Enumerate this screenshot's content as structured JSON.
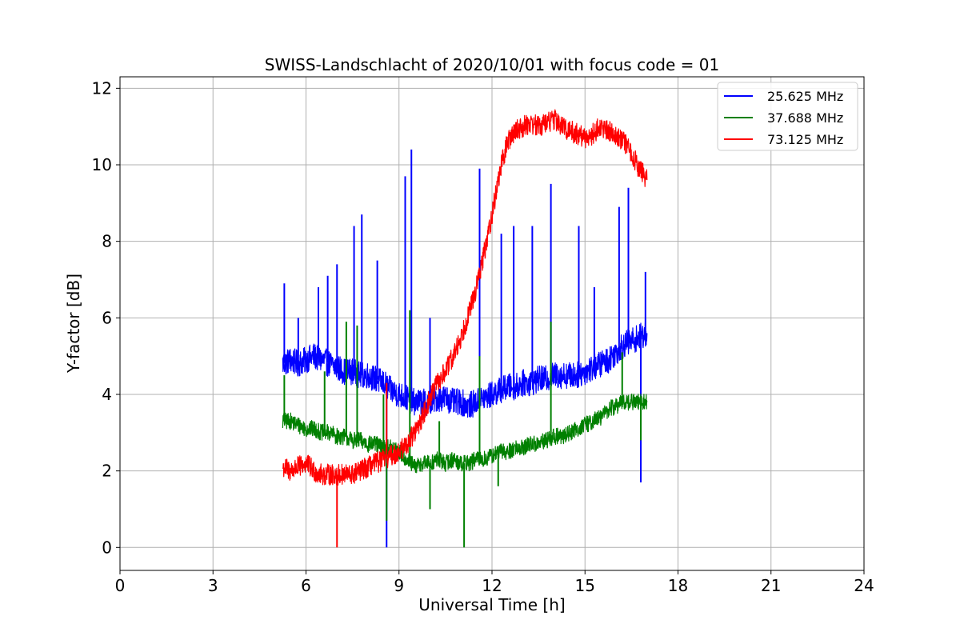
{
  "chart_data": {
    "type": "line",
    "title": "SWISS-Landschlacht of 2020/10/01 with focus code = 01",
    "xlabel": "Universal Time [h]",
    "ylabel": "Y-factor [dB]",
    "xlim": [
      0,
      24
    ],
    "ylim": [
      -0.6,
      12.3
    ],
    "xticks": [
      0,
      3,
      6,
      9,
      12,
      15,
      18,
      21,
      24
    ],
    "yticks": [
      0,
      2,
      4,
      6,
      8,
      10,
      12
    ],
    "grid": true,
    "legend_position": "top-right",
    "series": [
      {
        "name": "25.625 MHz",
        "color": "#0000ff",
        "x": [
          5.25,
          5.5,
          5.75,
          6.0,
          6.25,
          6.5,
          6.75,
          7.0,
          7.25,
          7.5,
          7.75,
          8.0,
          8.25,
          8.5,
          8.75,
          9.0,
          9.25,
          9.5,
          9.75,
          10.0,
          10.25,
          10.5,
          10.75,
          11.0,
          11.25,
          11.5,
          11.75,
          12.0,
          12.25,
          12.5,
          12.75,
          13.0,
          13.25,
          13.5,
          13.75,
          14.0,
          14.25,
          14.5,
          14.75,
          15.0,
          15.25,
          15.5,
          15.75,
          16.0,
          16.25,
          16.5,
          16.75,
          17.0
        ],
        "y": [
          4.8,
          4.9,
          4.8,
          4.9,
          5.0,
          4.9,
          4.8,
          4.7,
          4.6,
          4.6,
          4.5,
          4.5,
          4.4,
          4.3,
          4.1,
          4.0,
          3.9,
          3.8,
          3.8,
          3.8,
          3.9,
          3.9,
          3.8,
          3.8,
          3.7,
          3.8,
          3.9,
          4.0,
          4.1,
          4.2,
          4.2,
          4.3,
          4.3,
          4.4,
          4.4,
          4.5,
          4.5,
          4.5,
          4.5,
          4.6,
          4.7,
          4.8,
          4.9,
          5.1,
          5.3,
          5.4,
          5.5,
          5.6
        ],
        "spikes": [
          [
            5.3,
            6.9
          ],
          [
            5.75,
            6.0
          ],
          [
            6.4,
            6.8
          ],
          [
            6.7,
            7.1
          ],
          [
            7.0,
            7.4
          ],
          [
            7.55,
            8.4
          ],
          [
            7.8,
            8.7
          ],
          [
            8.3,
            7.5
          ],
          [
            9.2,
            9.7
          ],
          [
            9.4,
            10.4
          ],
          [
            10.0,
            6.0
          ],
          [
            11.6,
            9.9
          ],
          [
            12.3,
            8.2
          ],
          [
            12.7,
            8.4
          ],
          [
            13.3,
            8.4
          ],
          [
            13.9,
            9.5
          ],
          [
            14.8,
            8.4
          ],
          [
            15.3,
            6.8
          ],
          [
            16.1,
            8.9
          ],
          [
            16.4,
            9.4
          ],
          [
            16.95,
            7.2
          ],
          [
            8.6,
            0.0
          ],
          [
            16.8,
            1.7
          ]
        ]
      },
      {
        "name": "37.688 MHz",
        "color": "#008000",
        "x": [
          5.25,
          5.5,
          5.75,
          6.0,
          6.25,
          6.5,
          6.75,
          7.0,
          7.25,
          7.5,
          7.75,
          8.0,
          8.25,
          8.5,
          8.75,
          9.0,
          9.25,
          9.5,
          9.75,
          10.0,
          10.25,
          10.5,
          10.75,
          11.0,
          11.25,
          11.5,
          11.75,
          12.0,
          12.25,
          12.5,
          12.75,
          13.0,
          13.25,
          13.5,
          13.75,
          14.0,
          14.25,
          14.5,
          14.75,
          15.0,
          15.25,
          15.5,
          15.75,
          16.0,
          16.25,
          16.5,
          16.75,
          17.0
        ],
        "y": [
          3.3,
          3.3,
          3.2,
          3.1,
          3.1,
          3.0,
          3.0,
          2.9,
          2.9,
          2.8,
          2.8,
          2.7,
          2.7,
          2.6,
          2.6,
          2.5,
          2.3,
          2.1,
          2.2,
          2.2,
          2.3,
          2.2,
          2.3,
          2.2,
          2.2,
          2.3,
          2.3,
          2.4,
          2.5,
          2.5,
          2.6,
          2.6,
          2.7,
          2.7,
          2.8,
          2.9,
          2.9,
          3.0,
          3.1,
          3.2,
          3.3,
          3.4,
          3.6,
          3.7,
          3.8,
          3.8,
          3.8,
          3.8
        ],
        "spikes": [
          [
            5.3,
            4.5
          ],
          [
            6.6,
            4.6
          ],
          [
            7.3,
            5.9
          ],
          [
            7.65,
            5.8
          ],
          [
            8.5,
            4.0
          ],
          [
            9.35,
            6.2
          ],
          [
            10.3,
            3.3
          ],
          [
            11.6,
            5.0
          ],
          [
            13.9,
            5.9
          ],
          [
            16.2,
            5.1
          ],
          [
            8.6,
            0.7
          ],
          [
            10.0,
            1.0
          ],
          [
            11.1,
            0.0
          ],
          [
            12.2,
            1.6
          ],
          [
            16.8,
            2.8
          ]
        ]
      },
      {
        "name": "73.125 MHz",
        "color": "#ff0000",
        "x": [
          5.25,
          5.5,
          5.75,
          6.0,
          6.25,
          6.5,
          6.75,
          7.0,
          7.25,
          7.5,
          7.75,
          8.0,
          8.25,
          8.5,
          8.75,
          9.0,
          9.25,
          9.5,
          9.75,
          10.0,
          10.25,
          10.5,
          10.75,
          11.0,
          11.25,
          11.5,
          11.75,
          12.0,
          12.25,
          12.5,
          12.75,
          13.0,
          13.25,
          13.5,
          13.75,
          14.0,
          14.25,
          14.5,
          14.75,
          15.0,
          15.25,
          15.5,
          15.75,
          16.0,
          16.25,
          16.5,
          16.75,
          17.0
        ],
        "y": [
          2.1,
          2.0,
          2.1,
          2.2,
          2.0,
          1.9,
          1.9,
          1.9,
          1.9,
          1.9,
          2.0,
          2.1,
          2.2,
          2.3,
          2.4,
          2.5,
          2.7,
          3.0,
          3.4,
          3.9,
          4.3,
          4.6,
          5.0,
          5.5,
          6.1,
          6.8,
          7.7,
          8.7,
          9.8,
          10.6,
          10.9,
          11.0,
          11.1,
          11.0,
          11.1,
          11.2,
          11.0,
          10.9,
          10.8,
          10.7,
          10.8,
          11.0,
          10.9,
          10.8,
          10.6,
          10.3,
          9.9,
          9.6
        ],
        "spikes": [
          [
            7.0,
            0.0
          ],
          [
            8.6,
            4.3
          ]
        ]
      }
    ]
  }
}
